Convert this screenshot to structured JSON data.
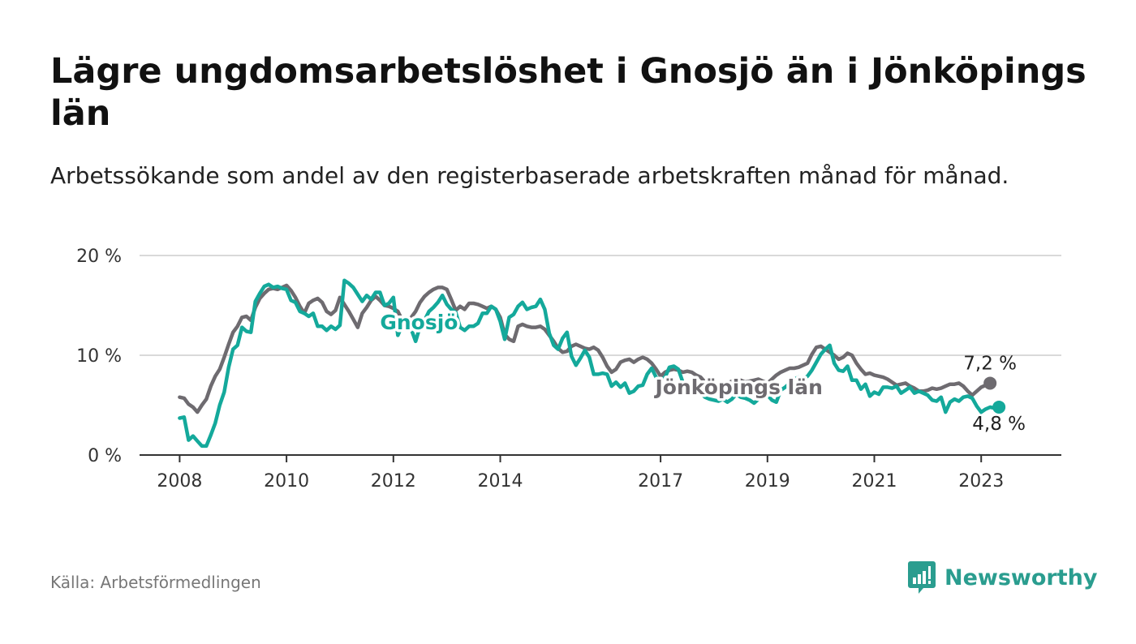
{
  "title": "Lägre ungdomsarbetslöshet i Gnosjö än i Jönköpings län",
  "subtitle": "Arbetssökande som andel av den registerbaserade arbetskraften månad för månad.",
  "source": "Källa: Arbetsförmedlingen",
  "brand": "Newsworthy",
  "colors": {
    "gnosjo": "#14a99b",
    "lan": "#6e6b70",
    "grid": "#d9d9d9",
    "axis": "#333333",
    "brand": "#2a9d8f"
  },
  "chart_data": {
    "type": "line",
    "title": "Lägre ungdomsarbetslöshet i Gnosjö än i Jönköpings län",
    "xlabel": "",
    "ylabel": "",
    "ylim": [
      0,
      20
    ],
    "xlim": [
      2007.25,
      2024.5
    ],
    "yticks": [
      {
        "value": 0,
        "label": "0 %"
      },
      {
        "value": 10,
        "label": "10 %"
      },
      {
        "value": 20,
        "label": "20 %"
      }
    ],
    "xticks": [
      {
        "value": 2008,
        "label": "2008"
      },
      {
        "value": 2010,
        "label": "2010"
      },
      {
        "value": 2012,
        "label": "2012"
      },
      {
        "value": 2014,
        "label": "2014"
      },
      {
        "value": 2017,
        "label": "2017"
      },
      {
        "value": 2019,
        "label": "2019"
      },
      {
        "value": 2021,
        "label": "2021"
      },
      {
        "value": 2023,
        "label": "2023"
      }
    ],
    "series": [
      {
        "name": "Jönköpings län",
        "label": "Jönköpings län",
        "end_label": "7,2 %",
        "start": 2008.0,
        "step": 0.08333,
        "values": [
          5.8,
          5.7,
          5.1,
          4.8,
          4.3,
          5.0,
          5.6,
          6.9,
          7.9,
          8.6,
          9.8,
          11.1,
          12.3,
          12.9,
          13.8,
          13.9,
          13.5,
          14.8,
          15.7,
          16.2,
          16.6,
          16.7,
          16.6,
          16.8,
          17.0,
          16.5,
          15.8,
          14.9,
          14.2,
          15.2,
          15.5,
          15.7,
          15.3,
          14.4,
          14.1,
          14.5,
          15.8,
          15.1,
          14.4,
          13.6,
          12.8,
          14.2,
          14.8,
          15.5,
          15.9,
          15.5,
          15.0,
          14.9,
          14.7,
          14.4,
          13.5,
          13.0,
          13.8,
          14.4,
          15.3,
          15.9,
          16.3,
          16.6,
          16.8,
          16.8,
          16.6,
          15.6,
          14.5,
          14.9,
          14.6,
          15.2,
          15.2,
          15.1,
          14.9,
          14.7,
          14.9,
          14.6,
          13.8,
          12.1,
          11.6,
          11.4,
          12.9,
          13.1,
          12.9,
          12.8,
          12.8,
          12.9,
          12.6,
          12.0,
          11.4,
          10.7,
          10.3,
          10.4,
          10.9,
          11.1,
          10.9,
          10.7,
          10.6,
          10.8,
          10.5,
          9.8,
          8.9,
          8.3,
          8.6,
          9.3,
          9.5,
          9.6,
          9.3,
          9.6,
          9.8,
          9.6,
          9.2,
          8.6,
          7.9,
          8.3,
          8.5,
          8.6,
          8.5,
          8.3,
          8.4,
          8.3,
          8.0,
          7.8,
          7.3,
          7.2,
          7.1,
          6.8,
          6.9,
          7.2,
          7.4,
          7.5,
          7.5,
          7.3,
          7.4,
          7.5,
          7.6,
          7.4,
          7.2,
          7.6,
          8.0,
          8.3,
          8.5,
          8.7,
          8.7,
          8.8,
          9.0,
          9.2,
          10.1,
          10.8,
          10.9,
          10.6,
          10.3,
          10.0,
          9.6,
          9.8,
          10.2,
          10.0,
          9.2,
          8.6,
          8.1,
          8.2,
          8.0,
          7.9,
          7.8,
          7.6,
          7.3,
          7.0,
          7.1,
          7.2,
          6.9,
          6.7,
          6.4,
          6.4,
          6.5,
          6.7,
          6.6,
          6.7,
          6.9,
          7.1,
          7.1,
          7.2,
          6.9,
          6.4,
          6.0,
          6.4,
          6.8,
          7.0,
          7.2
        ]
      },
      {
        "name": "Gnosjö",
        "label": "Gnosjö",
        "end_label": "4,8 %",
        "start": 2008.0,
        "step": 0.08333,
        "values": [
          3.7,
          3.8,
          1.5,
          1.9,
          1.4,
          0.9,
          0.9,
          2.0,
          3.2,
          5.0,
          6.3,
          8.8,
          10.6,
          11.0,
          12.8,
          12.4,
          12.3,
          15.4,
          16.2,
          16.9,
          17.1,
          16.8,
          16.9,
          16.7,
          16.6,
          15.5,
          15.3,
          14.4,
          14.2,
          13.9,
          14.2,
          12.9,
          12.9,
          12.5,
          12.9,
          12.6,
          13.0,
          17.5,
          17.2,
          16.8,
          16.1,
          15.4,
          16.0,
          15.6,
          16.3,
          16.3,
          15.0,
          15.2,
          15.8,
          12.0,
          13.0,
          12.8,
          12.6,
          11.4,
          12.9,
          13.5,
          14.4,
          14.8,
          15.3,
          16.0,
          15.1,
          14.6,
          14.3,
          12.8,
          12.5,
          12.9,
          12.9,
          13.2,
          14.2,
          14.2,
          14.9,
          14.6,
          13.4,
          11.6,
          13.8,
          14.1,
          14.9,
          15.3,
          14.6,
          14.8,
          14.9,
          15.6,
          14.6,
          12.2,
          11.0,
          10.6,
          11.7,
          12.3,
          9.9,
          9.0,
          9.7,
          10.5,
          9.8,
          8.1,
          8.1,
          8.2,
          8.1,
          6.9,
          7.3,
          6.8,
          7.2,
          6.2,
          6.4,
          6.9,
          7.0,
          8.1,
          8.7,
          7.8,
          7.5,
          7.8,
          8.8,
          8.9,
          8.6,
          7.3,
          7.0,
          6.5,
          6.5,
          6.2,
          5.8,
          5.6,
          5.5,
          5.4,
          5.6,
          5.3,
          5.6,
          6.1,
          5.8,
          5.7,
          5.5,
          5.2,
          5.6,
          6.3,
          6.0,
          5.5,
          5.3,
          6.5,
          6.8,
          7.2,
          7.6,
          7.8,
          7.6,
          7.9,
          8.5,
          9.3,
          10.1,
          10.6,
          11.0,
          9.2,
          8.5,
          8.4,
          8.9,
          7.5,
          7.5,
          6.6,
          7.1,
          5.9,
          6.3,
          6.1,
          6.8,
          6.8,
          6.7,
          6.9,
          6.2,
          6.5,
          6.8,
          6.2,
          6.4,
          6.2,
          6.0,
          5.5,
          5.4,
          5.8,
          4.3,
          5.3,
          5.6,
          5.4,
          5.8,
          5.9,
          5.7,
          4.9,
          4.3,
          4.6,
          4.8,
          4.7,
          4.8
        ]
      }
    ]
  }
}
